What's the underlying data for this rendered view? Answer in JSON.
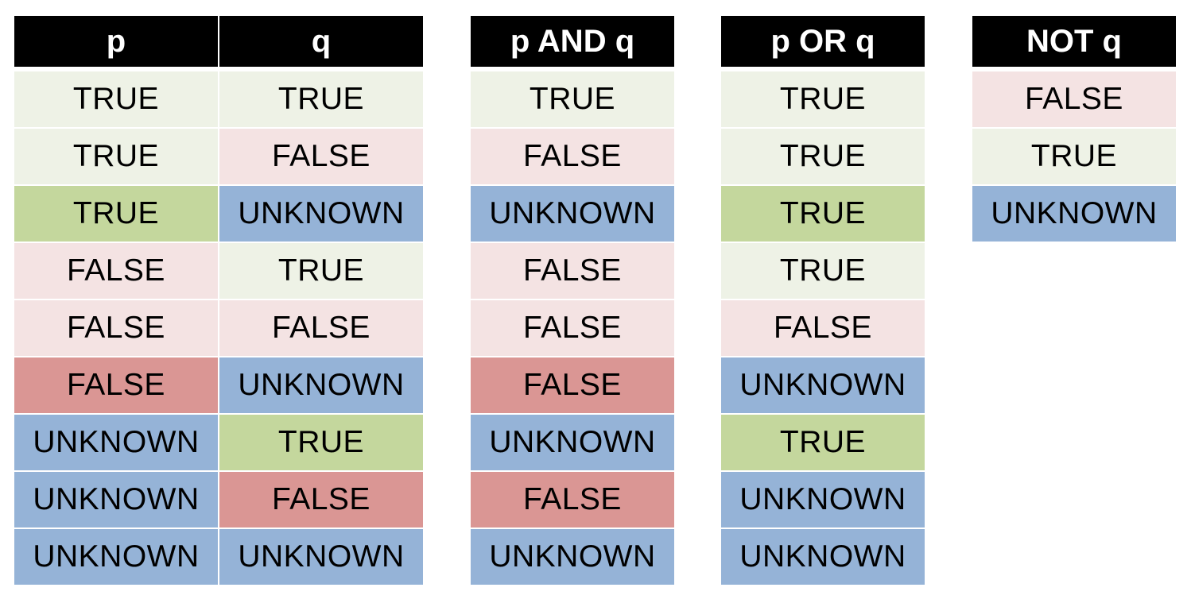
{
  "colors": {
    "true_light": "#eef2e6",
    "false_light": "#f4e3e3",
    "true_dark": "#c4d79d",
    "false_dark": "#da9694",
    "unknown": "#95b3d7",
    "header_bg": "#000000",
    "header_text": "#ffffff"
  },
  "headers": {
    "p": "p",
    "q": "q",
    "and": "p AND q",
    "or": "p OR q",
    "not": "NOT q"
  },
  "rows": [
    {
      "p": "TRUE",
      "q": "TRUE",
      "and": "TRUE",
      "or": "TRUE"
    },
    {
      "p": "TRUE",
      "q": "FALSE",
      "and": "FALSE",
      "or": "TRUE"
    },
    {
      "p": "TRUE",
      "q": "UNKNOWN",
      "and": "UNKNOWN",
      "or": "TRUE"
    },
    {
      "p": "FALSE",
      "q": "TRUE",
      "and": "FALSE",
      "or": "TRUE"
    },
    {
      "p": "FALSE",
      "q": "FALSE",
      "and": "FALSE",
      "or": "FALSE"
    },
    {
      "p": "FALSE",
      "q": "UNKNOWN",
      "and": "FALSE",
      "or": "UNKNOWN"
    },
    {
      "p": "UNKNOWN",
      "q": "TRUE",
      "and": "UNKNOWN",
      "or": "TRUE"
    },
    {
      "p": "UNKNOWN",
      "q": "FALSE",
      "and": "FALSE",
      "or": "UNKNOWN"
    },
    {
      "p": "UNKNOWN",
      "q": "UNKNOWN",
      "and": "UNKNOWN",
      "or": "UNKNOWN"
    }
  ],
  "not_rows": [
    "FALSE",
    "TRUE",
    "UNKNOWN"
  ]
}
